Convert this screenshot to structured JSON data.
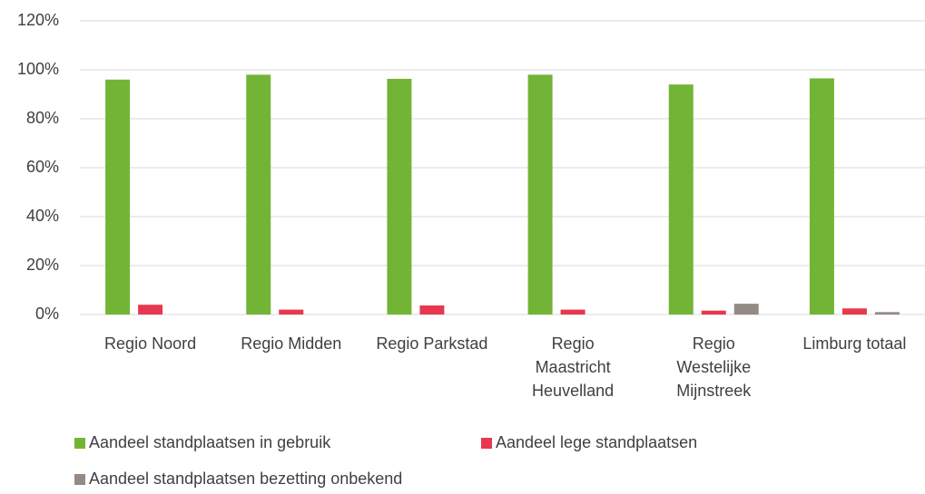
{
  "chart_data": {
    "type": "bar",
    "categories": [
      "Regio Noord",
      "Regio Midden",
      "Regio Parkstad",
      "Regio\nMaastricht\nHeuvelland",
      "Regio\nWestelijke\nMijnstreek",
      "Limburg totaal"
    ],
    "series": [
      {
        "name": "Aandeel standplaatsen in gebruik",
        "color": "#72b536",
        "values": [
          96,
          98,
          96.3,
          98,
          94,
          96.5
        ]
      },
      {
        "name": "Aandeel lege standplaatsen",
        "color": "#e8384f",
        "values": [
          4,
          2,
          3.7,
          2,
          1.6,
          2.5
        ]
      },
      {
        "name": "Aandeel standplaatsen bezetting onbekend",
        "color": "#948a84",
        "values": [
          0,
          0,
          0,
          0,
          4.4,
          1
        ]
      }
    ],
    "ylim": [
      0,
      120
    ],
    "yticks": [
      {
        "value": 0,
        "label": "0%"
      },
      {
        "value": 20,
        "label": "20%"
      },
      {
        "value": 40,
        "label": "40%"
      },
      {
        "value": 60,
        "label": "60%"
      },
      {
        "value": 80,
        "label": "80%"
      },
      {
        "value": 100,
        "label": "100%"
      },
      {
        "value": 120,
        "label": "120%"
      }
    ],
    "grid": true
  }
}
